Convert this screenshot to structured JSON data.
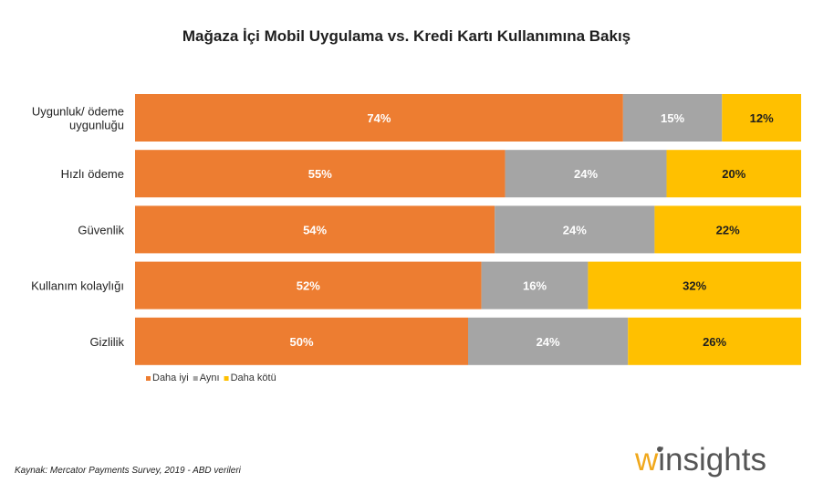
{
  "chart_data": {
    "type": "bar",
    "orientation": "horizontal",
    "stacked": true,
    "percent": true,
    "title": "Mağaza İçi Mobil Uygulama vs. Kredi Kartı Kullanımına Bakış",
    "categories": [
      [
        "Uygunluk/ ödeme",
        "uygunluğu"
      ],
      [
        "Hızlı ödeme"
      ],
      [
        "Güvenlik"
      ],
      [
        "Kullanım kolaylığı"
      ],
      [
        "Gizlilik"
      ]
    ],
    "series": [
      {
        "name": "Daha iyi",
        "color": "#ed7d31",
        "label_color": "#ffffff",
        "values": [
          74,
          55,
          54,
          52,
          50
        ]
      },
      {
        "name": "Aynı",
        "color": "#a5a5a5",
        "label_color": "#ffffff",
        "values": [
          15,
          24,
          24,
          16,
          24
        ]
      },
      {
        "name": "Daha kötü",
        "color": "#ffc000",
        "label_color": "#1f1f1f",
        "values": [
          12,
          20,
          22,
          32,
          26
        ]
      }
    ],
    "xlim": [
      0,
      100
    ],
    "legend": "bottom-left",
    "grid": false
  },
  "source": "Kaynak: Mercator Payments Survey, 2019 - ABD verileri",
  "brand": {
    "w": "w",
    "rest": "insights"
  }
}
